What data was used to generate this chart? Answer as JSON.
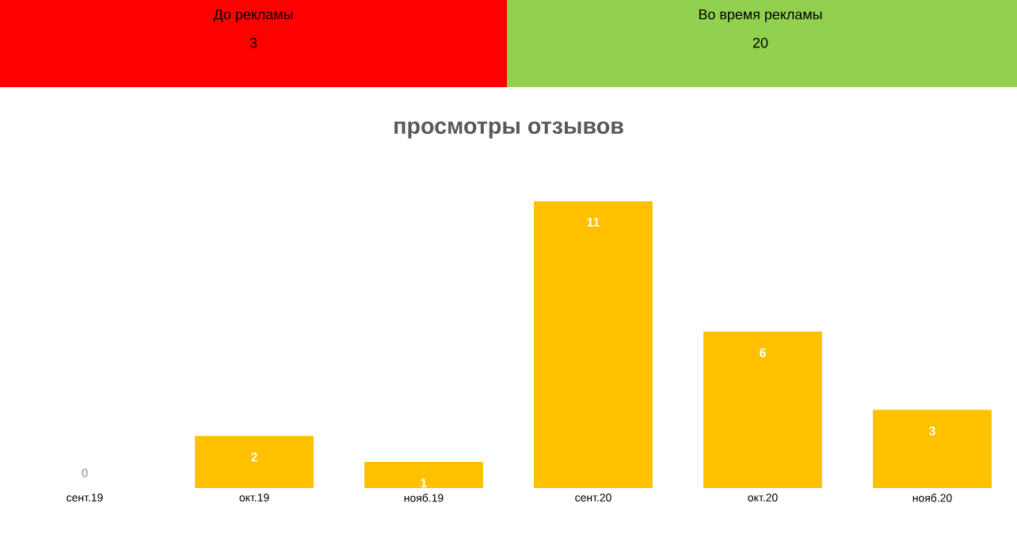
{
  "chart_data": {
    "type": "bar",
    "title": "просмотры отзывов",
    "categories": [
      "сент.19",
      "окт.19",
      "нояб.19",
      "сент.20",
      "окт.20",
      "нояб.20"
    ],
    "values": [
      0,
      2,
      1,
      11,
      6,
      3
    ],
    "color": "#ffc000",
    "data_labels": true,
    "annotations": [
      "До рекламы",
      "3",
      "Во время рекламы",
      "20"
    ]
  }
}
